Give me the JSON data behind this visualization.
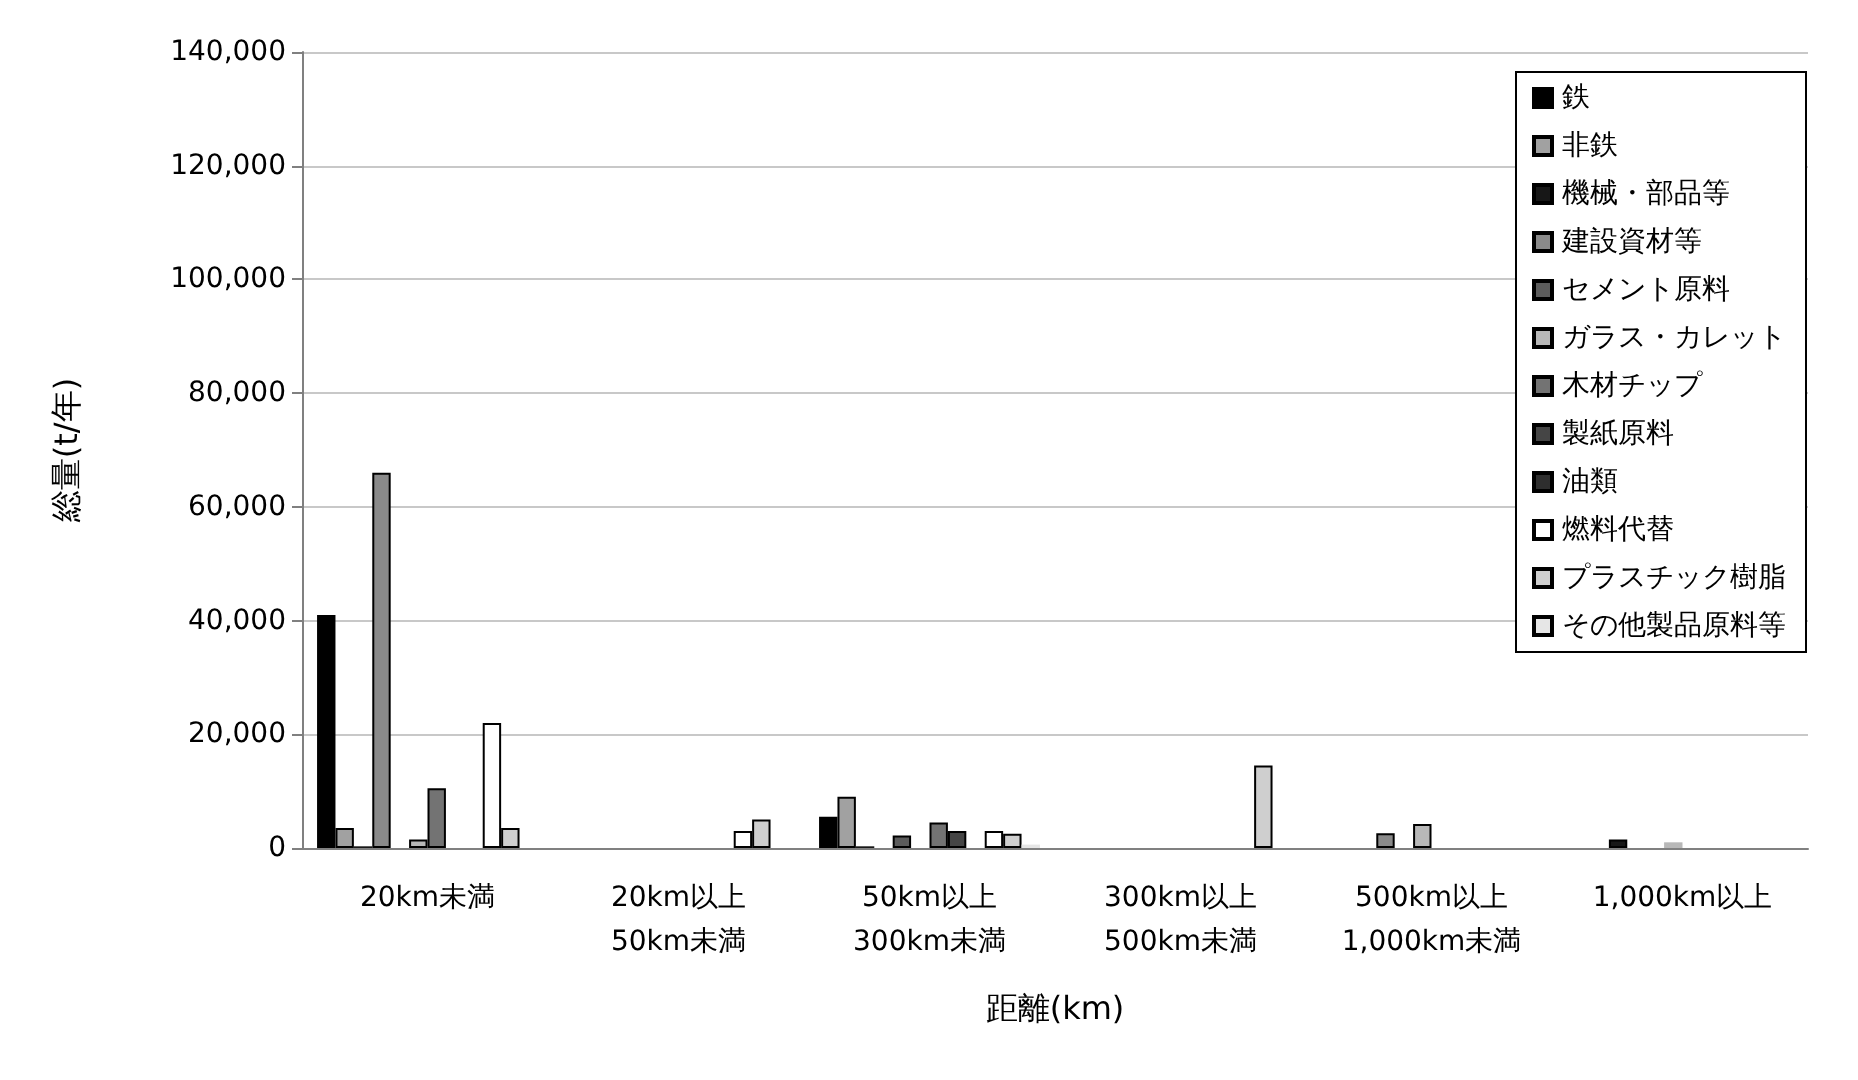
{
  "chart_data": {
    "type": "bar",
    "xlabel": "距離(km)",
    "ylabel": "総量(t/年)",
    "categories": [
      "20km未満",
      "20km以上\n50km未満",
      "50km以上\n300km未満",
      "300km以上\n500km未満",
      "500km以上\n1,000km未満",
      "1,000km以上"
    ],
    "series": [
      {
        "name": "鉄",
        "color": "#000000",
        "values": [
          41000,
          null,
          5500,
          null,
          null,
          null
        ]
      },
      {
        "name": "非鉄",
        "color": "#a1a1a1",
        "values": [
          3500,
          null,
          9000,
          null,
          null,
          null
        ]
      },
      {
        "name": "機械・部品等",
        "color": "#171717",
        "values": [
          300,
          null,
          300,
          null,
          null,
          1500
        ]
      },
      {
        "name": "建設資材等",
        "color": "#8a8a8a",
        "values": [
          66000,
          null,
          null,
          null,
          2600,
          null
        ]
      },
      {
        "name": "セメント原料",
        "color": "#5c5c5c",
        "values": [
          null,
          null,
          2200,
          null,
          null,
          null
        ]
      },
      {
        "name": "ガラス・カレット",
        "color": "#b8b8b8",
        "values": [
          1500,
          null,
          null,
          null,
          4200,
          1000
        ]
      },
      {
        "name": "木材チップ",
        "color": "#737373",
        "values": [
          10500,
          null,
          4500,
          null,
          null,
          null
        ]
      },
      {
        "name": "製紙原料",
        "color": "#454545",
        "values": [
          null,
          null,
          3000,
          null,
          null,
          null
        ]
      },
      {
        "name": "油類",
        "color": "#2e2e2e",
        "values": [
          null,
          null,
          null,
          null,
          null,
          null
        ]
      },
      {
        "name": "燃料代替",
        "color": "#ffffff",
        "values": [
          22000,
          3000,
          3000,
          null,
          null,
          null
        ]
      },
      {
        "name": "プラスチック樹脂",
        "color": "#cfcfcf",
        "values": [
          3500,
          5000,
          2500,
          14500,
          null,
          null
        ]
      },
      {
        "name": "その他製品原料等",
        "color": "#e6e6e6",
        "values": [
          null,
          null,
          600,
          null,
          null,
          null
        ]
      }
    ],
    "ylim": [
      0,
      140000
    ],
    "yticks": [
      0,
      {
        "value": 20000,
        "label": "20,000"
      },
      {
        "value": 40000,
        "label": "40,000"
      },
      {
        "value": 60000,
        "label": "60,000"
      },
      {
        "value": 80000,
        "label": "80,000"
      },
      {
        "value": 100000,
        "label": "100,000"
      },
      {
        "value": 120000,
        "label": "120,000"
      },
      {
        "value": 140000,
        "label": "140,000"
      }
    ],
    "grid": "y",
    "legend": "top right"
  }
}
